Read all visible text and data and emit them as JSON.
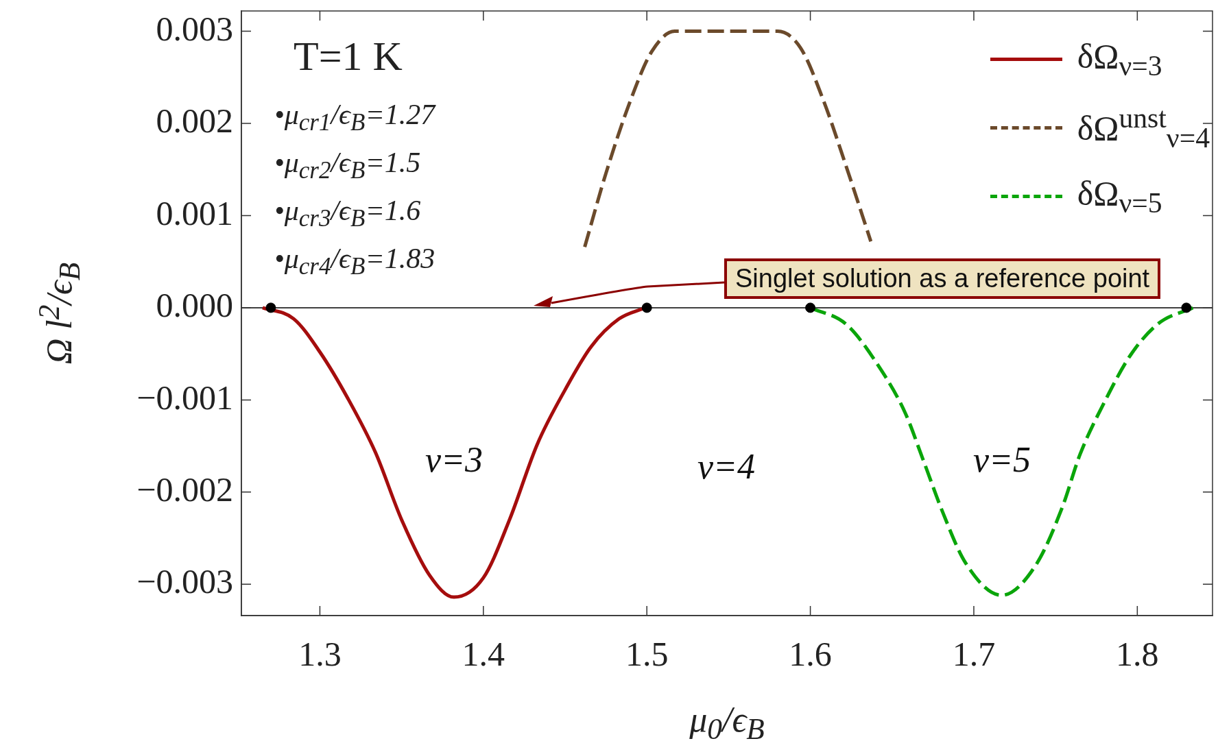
{
  "chart_data": {
    "type": "line",
    "xlabel": "μ$_{0}$/ϵ$_{B}$",
    "ylabel": "Ω l$^{2}$/ϵ$_{B}$",
    "xlim": [
      1.252,
      1.846
    ],
    "ylim": [
      -0.00334,
      0.00322
    ],
    "xticks": [
      1.3,
      1.4,
      1.5,
      1.6,
      1.7,
      1.8
    ],
    "yticks": [
      {
        "value": -0.003,
        "label": "−0.003"
      },
      {
        "value": -0.002,
        "label": "−0.002"
      },
      {
        "value": -0.001,
        "label": "−0.001"
      },
      {
        "value": 0,
        "label": "0.000"
      },
      {
        "value": 0.001,
        "label": "0.001"
      },
      {
        "value": 0.002,
        "label": "0.002"
      },
      {
        "value": 0.003,
        "label": "0.003"
      }
    ],
    "legend": "top right",
    "series": [
      {
        "name": "δΩ$_{ν=3}$",
        "color": "#a50d0d",
        "line_style": "solid",
        "x": [
          1.265,
          1.284,
          1.3,
          1.317,
          1.334,
          1.35,
          1.367,
          1.382,
          1.4,
          1.416,
          1.433,
          1.45,
          1.466,
          1.483,
          1.499
        ],
        "values": [
          0,
          -0.00012,
          -0.00048,
          -0.00098,
          -0.00157,
          -0.0023,
          -0.0029,
          -0.00314,
          -0.00293,
          -0.0023,
          -0.00148,
          -0.00089,
          -0.00042,
          -0.00012,
          0
        ]
      },
      {
        "name": "δΩ$^{unst}$$_{ν=4}$",
        "color": "#6b4a2b",
        "line_style": "dashed",
        "x": [
          1.462,
          1.475,
          1.49,
          1.503,
          1.517,
          1.58,
          1.594,
          1.608,
          1.622,
          1.637
        ],
        "values": [
          0.00066,
          0.00146,
          0.00225,
          0.00278,
          0.003,
          0.003,
          0.00282,
          0.00225,
          0.00153,
          0.00072
        ]
      },
      {
        "name": "δΩ$_{ν=5}$",
        "color": "#0aa50a",
        "line_style": "dashed",
        "x": [
          1.6,
          1.622,
          1.642,
          1.658,
          1.669,
          1.681,
          1.695,
          1.717,
          1.738,
          1.754,
          1.765,
          1.78,
          1.796,
          1.813,
          1.834
        ],
        "values": [
          0,
          -0.00018,
          -0.00064,
          -0.00114,
          -0.00165,
          -0.00222,
          -0.00277,
          -0.00312,
          -0.00279,
          -0.00217,
          -0.00159,
          -0.00102,
          -0.00051,
          -0.00017,
          0
        ]
      },
      {
        "type": "scatter",
        "marker": "circle",
        "color": "#000000",
        "x": [
          1.27,
          1.5,
          1.6,
          1.83
        ],
        "values": [
          0,
          0,
          0,
          0
        ]
      }
    ],
    "ref_lines": [
      {
        "axis": "y",
        "value": 0,
        "color": "#000000"
      }
    ],
    "annotations": [
      "T=1 K",
      "•μ$_{cr1}$/ϵ$_{B}$=1.27",
      "•μ$_{cr2}$/ϵ$_{B}$=1.5",
      "•μ$_{cr3}$/ϵ$_{B}$=1.6",
      "•μ$_{cr4}$/ϵ$_{B}$=1.83",
      "ν=3",
      "ν=4",
      "ν=5",
      "Singlet solution as a reference point"
    ]
  }
}
